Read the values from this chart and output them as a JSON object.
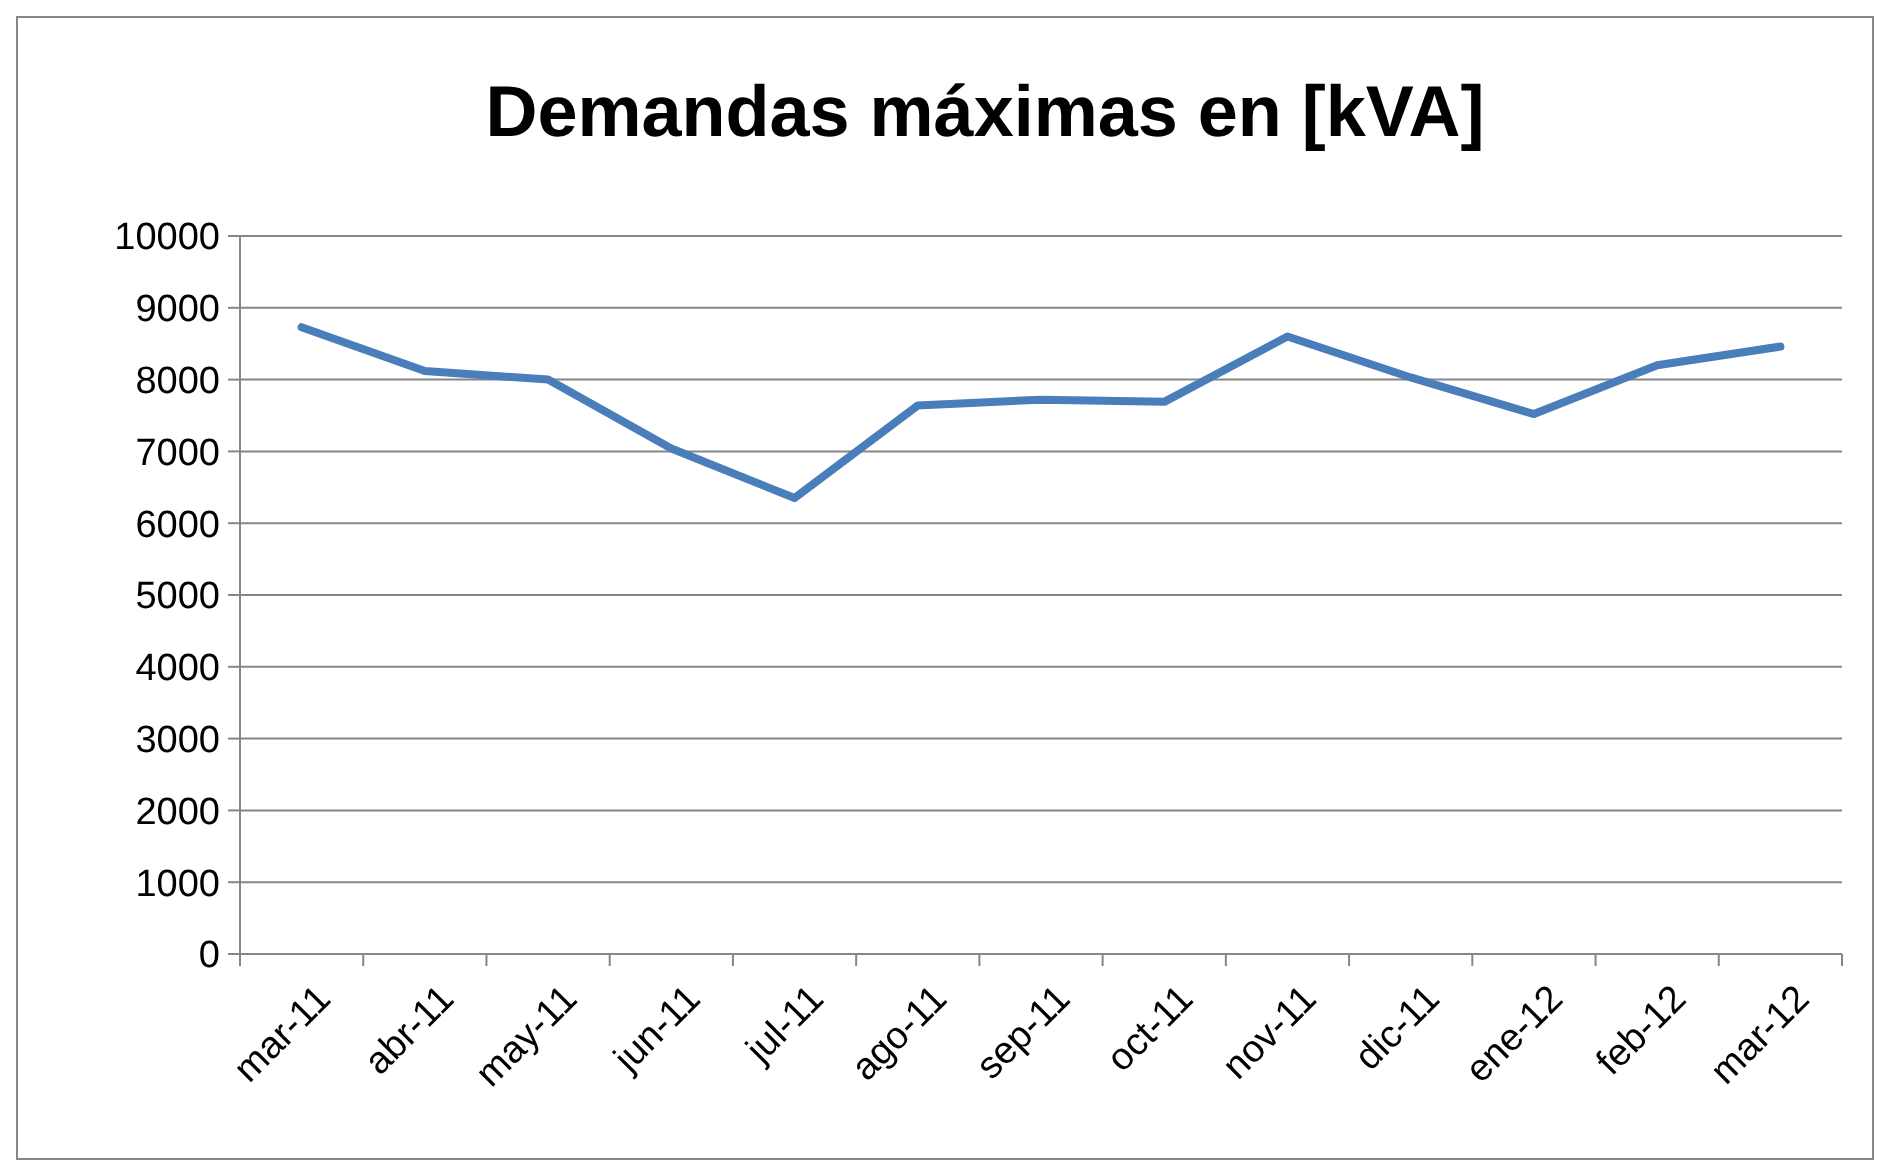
{
  "chart_data": {
    "type": "line",
    "title": "Demandas máximas en [kVA]",
    "categories": [
      "mar-11",
      "abr-11",
      "may-11",
      "jun-11",
      "jul-11",
      "ago-11",
      "sep-11",
      "oct-11",
      "nov-11",
      "dic-11",
      "ene-12",
      "feb-12",
      "mar-12"
    ],
    "series": [
      {
        "color": "#4a7ebb",
        "values": [
          8730,
          8120,
          8000,
          7040,
          6350,
          7640,
          7720,
          7690,
          8600,
          8030,
          7520,
          8200,
          8460
        ]
      }
    ],
    "ylim": [
      0,
      10000
    ],
    "yticks": [
      0,
      1000,
      2000,
      3000,
      4000,
      5000,
      6000,
      7000,
      8000,
      9000,
      10000
    ],
    "grid": "y",
    "marker": "none",
    "line_style": "solid"
  }
}
